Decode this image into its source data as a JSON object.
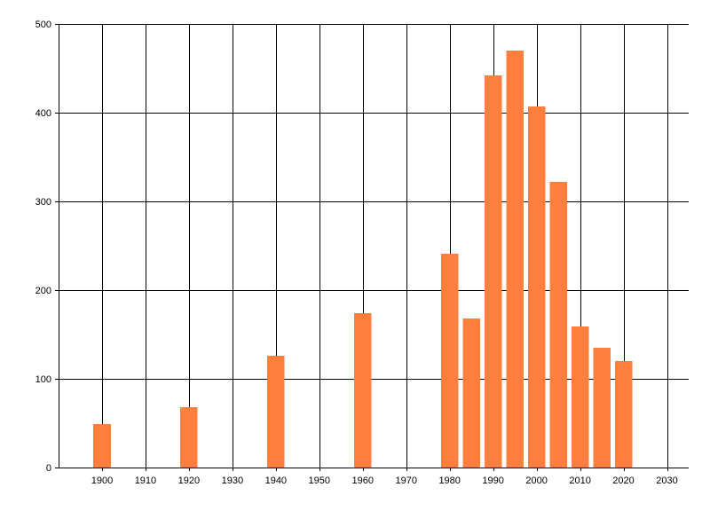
{
  "chart_data": {
    "type": "bar",
    "title": "",
    "xlabel": "",
    "ylabel": "",
    "x_ticks": [
      1900,
      1910,
      1920,
      1930,
      1940,
      1950,
      1960,
      1970,
      1980,
      1990,
      2000,
      2010,
      2020,
      2030
    ],
    "xlim": [
      1890,
      2035
    ],
    "ylim": [
      0,
      500
    ],
    "y_ticks": [
      0,
      100,
      200,
      300,
      400,
      500
    ],
    "grid": true,
    "legend": "none",
    "bar_color": "#ff7f3f",
    "series": [
      {
        "x": [
          1900,
          1920,
          1940,
          1960,
          1980,
          1985,
          1990,
          1995,
          2000,
          2005,
          2010,
          2015,
          2020
        ],
        "values": [
          49,
          68,
          126,
          174,
          241,
          168,
          442,
          470,
          407,
          322,
          159,
          135,
          120
        ]
      }
    ]
  }
}
